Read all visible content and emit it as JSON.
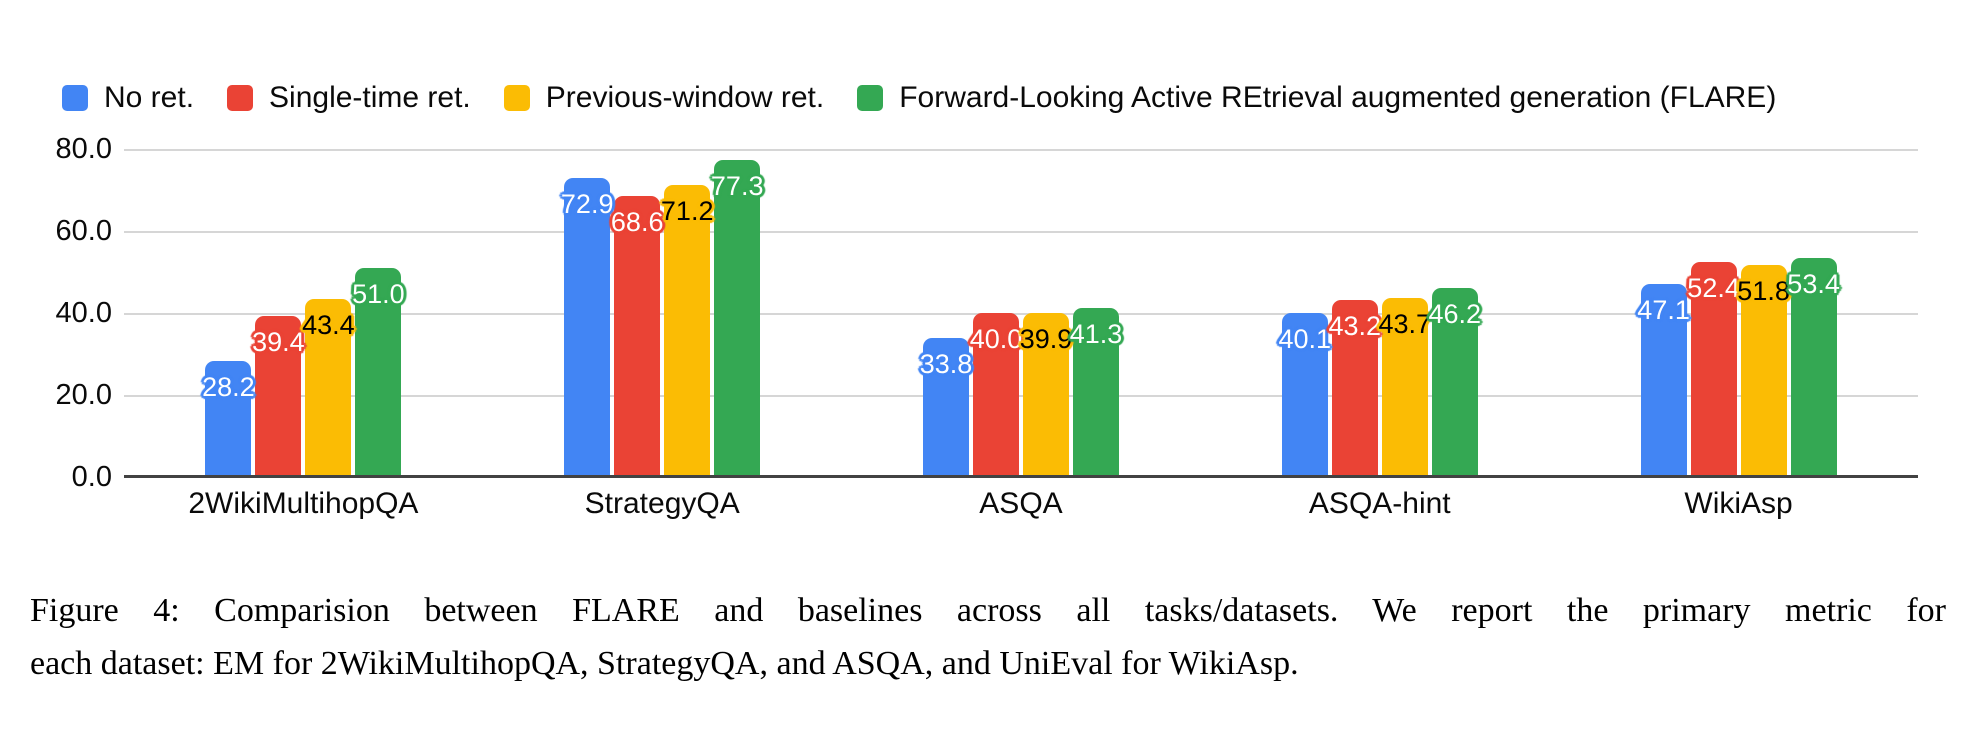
{
  "legend": {
    "items": [
      {
        "label": "No ret.",
        "color": "#4285F4"
      },
      {
        "label": "Single-time ret.",
        "color": "#EA4335"
      },
      {
        "label": "Previous-window ret.",
        "color": "#FBBC04"
      },
      {
        "label": "Forward-Looking Active REtrieval augmented generation (FLARE)",
        "color": "#34A853"
      }
    ]
  },
  "chart_data": {
    "type": "bar",
    "title": "",
    "xlabel": "",
    "ylabel": "",
    "ylim": [
      0,
      80
    ],
    "grid": true,
    "legend_position": "top",
    "y_ticks": [
      "80.0",
      "60.0",
      "40.0",
      "20.0",
      "0.0"
    ],
    "categories": [
      "2WikiMultihopQA",
      "StrategyQA",
      "ASQA",
      "ASQA-hint",
      "WikiAsp"
    ],
    "series": [
      {
        "name": "No ret.",
        "color": "#4285F4",
        "label_color": "#ffffff",
        "values": [
          28.2,
          72.9,
          33.8,
          40.1,
          47.1
        ],
        "display": [
          "28.2",
          "72.9",
          "33.8",
          "40.1",
          "47.1"
        ]
      },
      {
        "name": "Single-time ret.",
        "color": "#EA4335",
        "label_color": "#ffffff",
        "values": [
          39.4,
          68.6,
          40.0,
          43.2,
          52.4
        ],
        "display": [
          "39.4",
          "68.6",
          "40.0",
          "43.2",
          "52.4"
        ]
      },
      {
        "name": "Previous-window ret.",
        "color": "#FBBC04",
        "label_color": "#000000",
        "values": [
          43.4,
          71.2,
          39.9,
          43.7,
          51.8
        ],
        "display": [
          "43.4",
          "71.2",
          "39.9",
          "43.7",
          "51.8"
        ]
      },
      {
        "name": "Forward-Looking Active REtrieval augmented generation (FLARE)",
        "color": "#34A853",
        "label_color": "#ffffff",
        "values": [
          51.0,
          77.3,
          41.3,
          46.2,
          53.4
        ],
        "display": [
          "51.0",
          "77.3",
          "41.3",
          "46.2",
          "53.4"
        ]
      }
    ]
  },
  "caption": {
    "line1": "Figure 4: Comparision between FLARE and baselines across all tasks/datasets. We report the primary metric for",
    "line2": "each dataset: EM for 2WikiMultihopQA, StrategyQA, and ASQA, and UniEval for WikiAsp.",
    "full_text": "Figure 4: Comparision between FLARE and baselines across all tasks/datasets. We report the primary metric for each dataset: EM for 2WikiMultihopQA, StrategyQA, and ASQA, and UniEval for WikiAsp."
  }
}
